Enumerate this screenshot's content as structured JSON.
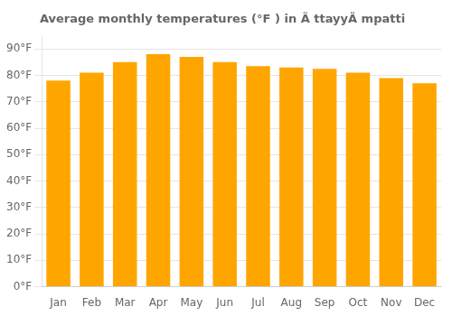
{
  "chart_data": {
    "type": "bar",
    "title": "Average monthly temperatures (°F ) in Ä ttayyÄ mpatti",
    "categories": [
      "Jan",
      "Feb",
      "Mar",
      "Apr",
      "May",
      "Jun",
      "Jul",
      "Aug",
      "Sep",
      "Oct",
      "Nov",
      "Dec"
    ],
    "values": [
      78,
      81,
      85,
      88,
      87,
      85,
      83.5,
      83,
      82.5,
      81,
      79,
      77
    ],
    "color": "#FFA500",
    "ylim": [
      0,
      95
    ],
    "yticks": [
      {
        "value": 0,
        "label": "0°F"
      },
      {
        "value": 10,
        "label": "10°F"
      },
      {
        "value": 20,
        "label": "20°F"
      },
      {
        "value": 30,
        "label": "30°F"
      },
      {
        "value": 40,
        "label": "40°F"
      },
      {
        "value": 50,
        "label": "50°F"
      },
      {
        "value": 60,
        "label": "60°F"
      },
      {
        "value": 70,
        "label": "70°F"
      },
      {
        "value": 80,
        "label": "80°F"
      },
      {
        "value": 90,
        "label": "90°F"
      }
    ],
    "grid": true
  }
}
